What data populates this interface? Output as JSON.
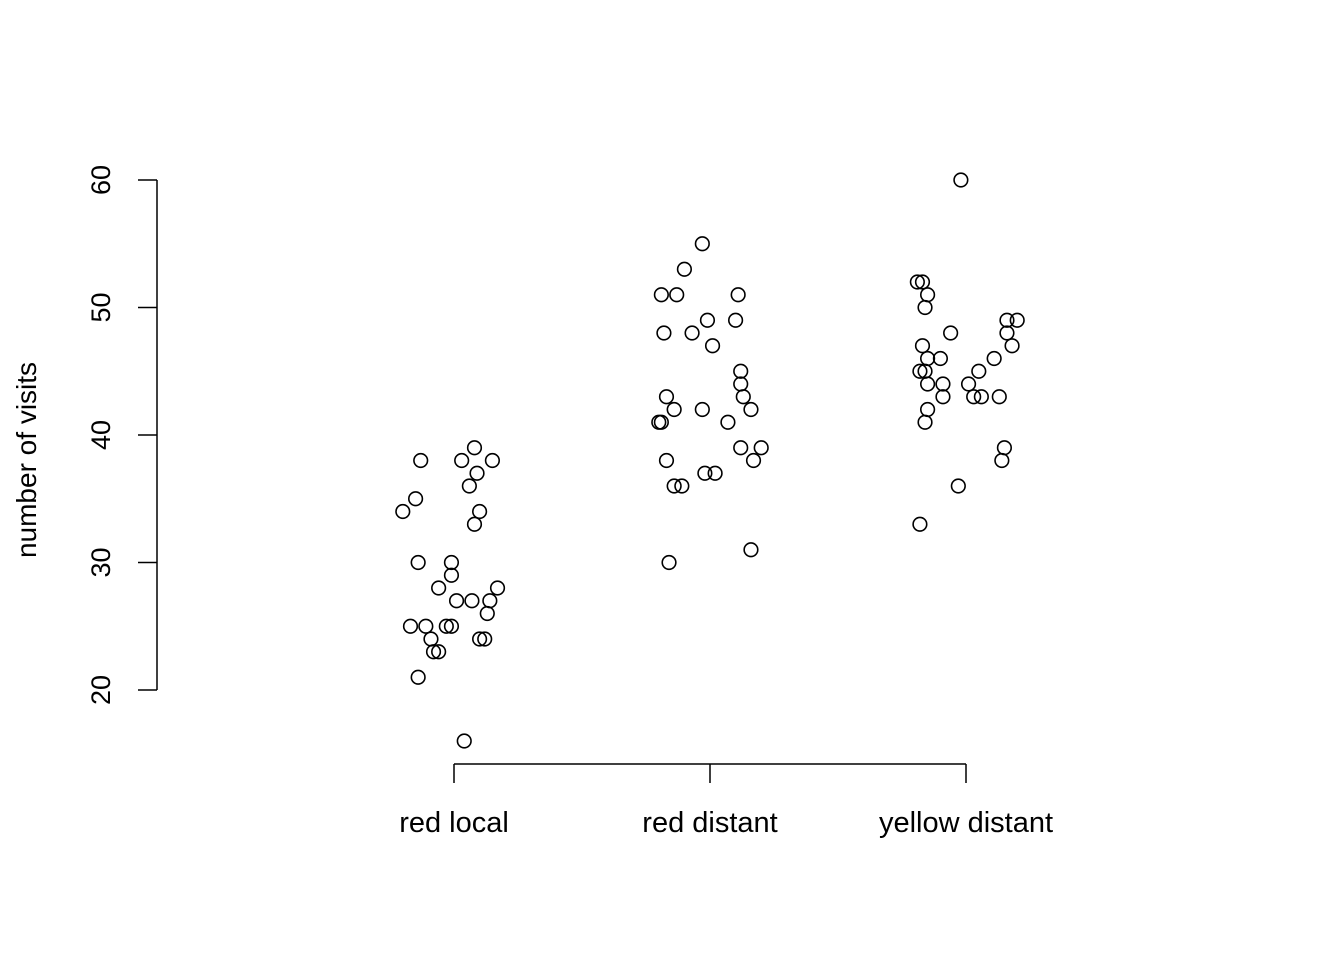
{
  "chart_data": {
    "type": "scatter",
    "title": "",
    "xlabel": "",
    "ylabel": "number of visits",
    "ylim": [
      20,
      60
    ],
    "yticks": [
      20,
      30,
      40,
      50,
      60
    ],
    "categories": [
      "red local",
      "red distant",
      "yellow distant"
    ],
    "series": [
      {
        "category": "red local",
        "points": [
          {
            "jitter": -0.2,
            "y": 34
          },
          {
            "jitter": -0.15,
            "y": 35
          },
          {
            "jitter": -0.13,
            "y": 38
          },
          {
            "jitter": -0.14,
            "y": 30
          },
          {
            "jitter": -0.17,
            "y": 25
          },
          {
            "jitter": -0.11,
            "y": 25
          },
          {
            "jitter": -0.09,
            "y": 24
          },
          {
            "jitter": -0.08,
            "y": 23
          },
          {
            "jitter": -0.06,
            "y": 23
          },
          {
            "jitter": -0.14,
            "y": 21
          },
          {
            "jitter": -0.06,
            "y": 28
          },
          {
            "jitter": -0.03,
            "y": 25
          },
          {
            "jitter": -0.01,
            "y": 25
          },
          {
            "jitter": -0.01,
            "y": 30
          },
          {
            "jitter": -0.01,
            "y": 29
          },
          {
            "jitter": 0.01,
            "y": 27
          },
          {
            "jitter": 0.03,
            "y": 38
          },
          {
            "jitter": 0.06,
            "y": 36
          },
          {
            "jitter": 0.07,
            "y": 27
          },
          {
            "jitter": 0.08,
            "y": 33
          },
          {
            "jitter": 0.08,
            "y": 39
          },
          {
            "jitter": 0.09,
            "y": 37
          },
          {
            "jitter": 0.1,
            "y": 34
          },
          {
            "jitter": 0.1,
            "y": 24
          },
          {
            "jitter": 0.12,
            "y": 24
          },
          {
            "jitter": 0.13,
            "y": 26
          },
          {
            "jitter": 0.14,
            "y": 27
          },
          {
            "jitter": 0.15,
            "y": 38
          },
          {
            "jitter": 0.17,
            "y": 28
          },
          {
            "jitter": 0.04,
            "y": 16
          }
        ]
      },
      {
        "category": "red distant",
        "points": [
          {
            "jitter": -0.19,
            "y": 51
          },
          {
            "jitter": -0.18,
            "y": 48
          },
          {
            "jitter": -0.19,
            "y": 41
          },
          {
            "jitter": -0.2,
            "y": 41
          },
          {
            "jitter": -0.17,
            "y": 43
          },
          {
            "jitter": -0.17,
            "y": 38
          },
          {
            "jitter": -0.16,
            "y": 30
          },
          {
            "jitter": -0.14,
            "y": 42
          },
          {
            "jitter": -0.14,
            "y": 36
          },
          {
            "jitter": -0.13,
            "y": 51
          },
          {
            "jitter": -0.11,
            "y": 36
          },
          {
            "jitter": -0.1,
            "y": 53
          },
          {
            "jitter": -0.07,
            "y": 48
          },
          {
            "jitter": -0.03,
            "y": 55
          },
          {
            "jitter": -0.03,
            "y": 42
          },
          {
            "jitter": -0.02,
            "y": 37
          },
          {
            "jitter": -0.01,
            "y": 49
          },
          {
            "jitter": 0.01,
            "y": 47
          },
          {
            "jitter": 0.02,
            "y": 37
          },
          {
            "jitter": 0.07,
            "y": 41
          },
          {
            "jitter": 0.1,
            "y": 49
          },
          {
            "jitter": 0.11,
            "y": 51
          },
          {
            "jitter": 0.12,
            "y": 45
          },
          {
            "jitter": 0.12,
            "y": 44
          },
          {
            "jitter": 0.13,
            "y": 43
          },
          {
            "jitter": 0.12,
            "y": 39
          },
          {
            "jitter": 0.16,
            "y": 42
          },
          {
            "jitter": 0.17,
            "y": 38
          },
          {
            "jitter": 0.2,
            "y": 39
          },
          {
            "jitter": 0.16,
            "y": 31
          }
        ]
      },
      {
        "category": "yellow distant",
        "points": [
          {
            "jitter": -0.19,
            "y": 52
          },
          {
            "jitter": -0.17,
            "y": 52
          },
          {
            "jitter": -0.15,
            "y": 51
          },
          {
            "jitter": -0.16,
            "y": 50
          },
          {
            "jitter": -0.17,
            "y": 47
          },
          {
            "jitter": -0.15,
            "y": 46
          },
          {
            "jitter": -0.1,
            "y": 46
          },
          {
            "jitter": -0.18,
            "y": 45
          },
          {
            "jitter": -0.16,
            "y": 45
          },
          {
            "jitter": -0.15,
            "y": 44
          },
          {
            "jitter": -0.09,
            "y": 44
          },
          {
            "jitter": -0.09,
            "y": 43
          },
          {
            "jitter": -0.15,
            "y": 42
          },
          {
            "jitter": -0.16,
            "y": 41
          },
          {
            "jitter": -0.06,
            "y": 48
          },
          {
            "jitter": -0.18,
            "y": 33
          },
          {
            "jitter": -0.03,
            "y": 36
          },
          {
            "jitter": -0.02,
            "y": 60
          },
          {
            "jitter": 0.01,
            "y": 44
          },
          {
            "jitter": 0.03,
            "y": 43
          },
          {
            "jitter": 0.05,
            "y": 45
          },
          {
            "jitter": 0.06,
            "y": 43
          },
          {
            "jitter": 0.11,
            "y": 46
          },
          {
            "jitter": 0.13,
            "y": 43
          },
          {
            "jitter": 0.15,
            "y": 39
          },
          {
            "jitter": 0.14,
            "y": 38
          },
          {
            "jitter": 0.16,
            "y": 49
          },
          {
            "jitter": 0.16,
            "y": 48
          },
          {
            "jitter": 0.18,
            "y": 47
          },
          {
            "jitter": 0.2,
            "y": 49
          }
        ]
      }
    ],
    "grid": false,
    "legend": "none",
    "point_style": "open-circle",
    "color": "#000000"
  }
}
